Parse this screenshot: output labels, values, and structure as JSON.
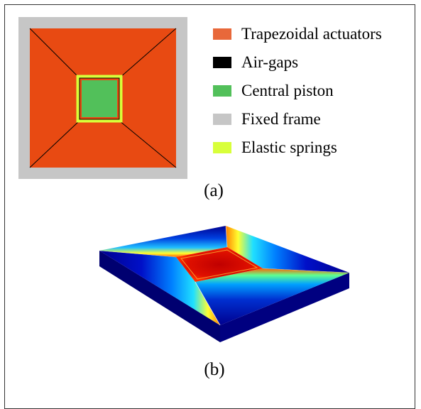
{
  "legend": {
    "items": [
      {
        "label": "Trapezoidal actuators",
        "color": "#e8683a"
      },
      {
        "label": "Air-gaps",
        "color": "#000000"
      },
      {
        "label": "Central piston",
        "color": "#52c05a"
      },
      {
        "label": "Fixed frame",
        "color": "#c6c6c6"
      },
      {
        "label": "Elastic springs",
        "color": "#d8ff3a"
      }
    ]
  },
  "panels": {
    "a": {
      "caption": "(a)"
    },
    "b": {
      "caption": "(b)"
    }
  },
  "colors": {
    "actuator_fill": "#e84a12",
    "piston_fill": "#52c05a",
    "frame_fill": "#c6c6c6",
    "spring_fill": "#d8ff3a"
  }
}
